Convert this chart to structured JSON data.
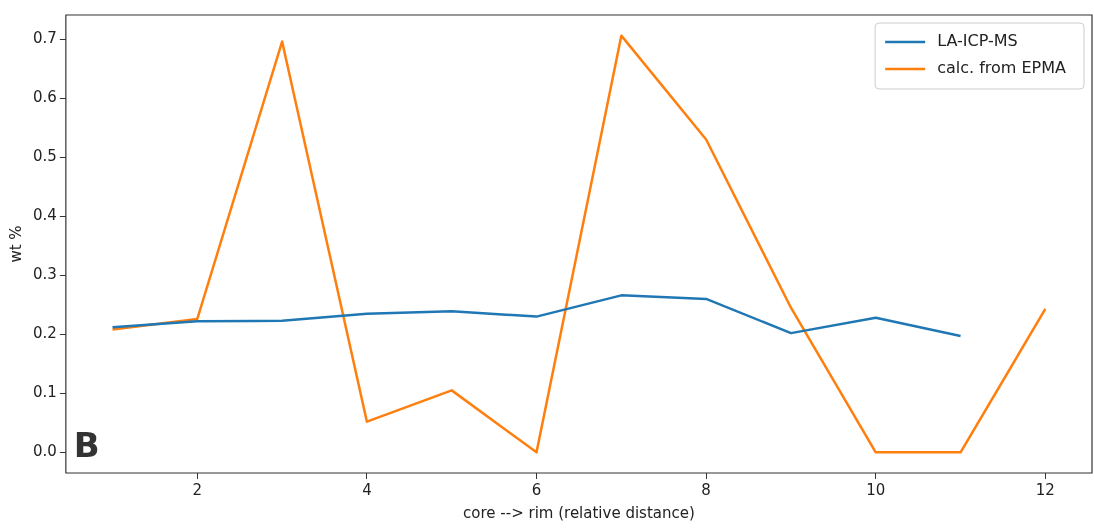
{
  "chart_data": {
    "type": "line",
    "xlabel": "core --> rim (relative distance)",
    "ylabel": "wt %",
    "annotations": [
      "B"
    ],
    "x": [
      1,
      2,
      3,
      4,
      5,
      6,
      7,
      8,
      9,
      10,
      11,
      12
    ],
    "series": [
      {
        "name": "LA-ICP-MS",
        "color": "#1f77b4",
        "values": [
          0.212,
          0.222,
          0.223,
          0.235,
          0.239,
          0.23,
          0.266,
          0.26,
          0.202,
          0.228,
          0.197,
          null
        ]
      },
      {
        "name": "calc. from EPMA",
        "color": "#ff7f0e",
        "values": [
          0.208,
          0.226,
          0.696,
          0.052,
          0.105,
          0.0,
          0.706,
          0.53,
          0.245,
          0.0,
          0.0,
          0.243
        ]
      }
    ],
    "xlim": [
      0.45,
      12.55
    ],
    "xticks": [
      2,
      4,
      6,
      8,
      10,
      12
    ],
    "ylim": [
      -0.035,
      0.741
    ],
    "yticks": [
      {
        "value": 0,
        "label": "0.0"
      },
      {
        "value": 0.1,
        "label": "0.1"
      },
      {
        "value": 0.2,
        "label": "0.2"
      },
      {
        "value": 0.3,
        "label": "0.3"
      },
      {
        "value": 0.4,
        "label": "0.4"
      },
      {
        "value": 0.5,
        "label": "0.5"
      },
      {
        "value": 0.6,
        "label": "0.6"
      },
      {
        "value": 0.7,
        "label": "0.7"
      }
    ],
    "grid": false,
    "legend": "top right",
    "marker": "none",
    "line_style": "solid"
  }
}
